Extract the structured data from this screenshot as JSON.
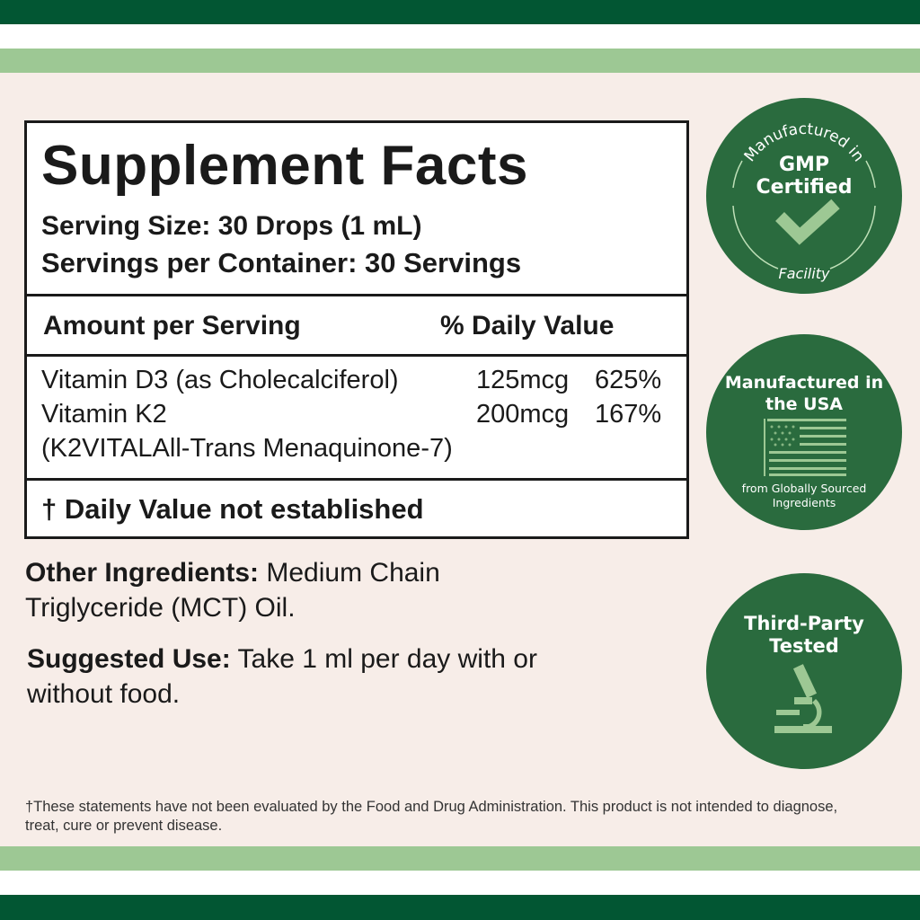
{
  "colors": {
    "dark_green": "#025633",
    "light_green": "#9dc894",
    "background": "#f7ede8",
    "badge_green": "#2a6b3e"
  },
  "facts": {
    "title": "Supplement Facts",
    "serving_size": "Serving Size: 30 Drops (1 mL)",
    "servings_per_container": "Servings per Container: 30 Servings",
    "amount_header": "Amount per Serving",
    "dv_header": "% Daily Value",
    "rows": [
      {
        "name": "Vitamin D3 (as Cholecalciferol)",
        "amount": "125mcg",
        "dv": "625%"
      },
      {
        "name": "Vitamin K2",
        "amount": "200mcg",
        "dv": "167%"
      },
      {
        "name": "(K2VITALAll-Trans Menaquinone-7)",
        "amount": "",
        "dv": ""
      }
    ],
    "footnote": "† Daily Value not established"
  },
  "other_ingredients": {
    "label": "Other Ingredients:",
    "text": " Medium Chain Triglyceride (MCT) Oil."
  },
  "suggested_use": {
    "label": "Suggested Use:",
    "text": " Take 1 ml per day with or without food."
  },
  "disclaimer": "†These statements have not been evaluated by the Food and Drug Administration. This product is not intended to diagnose, treat, cure or prevent disease.",
  "badges": [
    {
      "top": "Manufactured in",
      "main": "GMP Certified",
      "bottom": "Facility",
      "icon": "checkmark-icon"
    },
    {
      "main": "Manufactured in the USA",
      "bottom": "from Globally Sourced Ingredients",
      "icon": "us-flag-icon"
    },
    {
      "main": "Third-Party Tested",
      "icon": "microscope-icon"
    }
  ]
}
